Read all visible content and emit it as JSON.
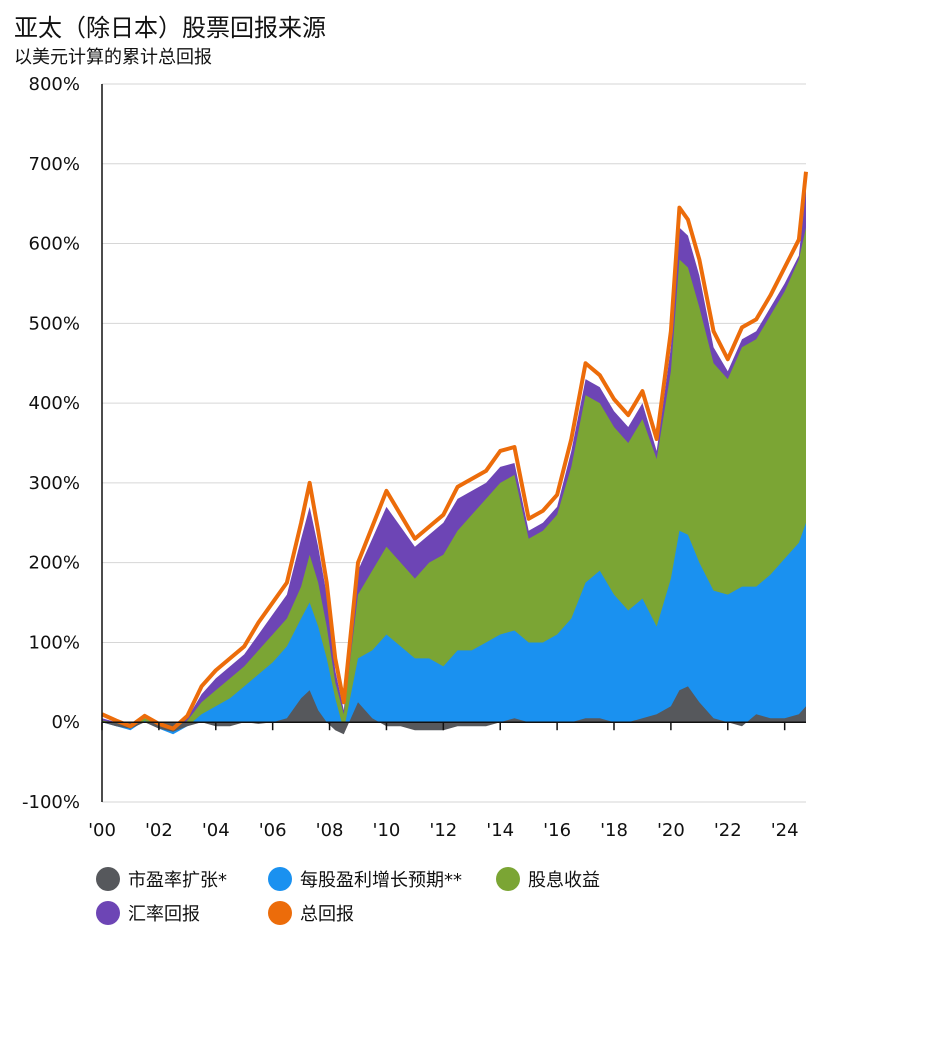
{
  "title": "亚太（除日本）股票回报来源",
  "subtitle": "以美元计算的累计总回报",
  "chart_data": {
    "type": "area",
    "ylim": [
      -100,
      800
    ],
    "y_ticks": [
      "800%",
      "700%",
      "600%",
      "500%",
      "400%",
      "300%",
      "200%",
      "100%",
      "0%",
      "-100%"
    ],
    "y_tick_values": [
      800,
      700,
      600,
      500,
      400,
      300,
      200,
      100,
      0,
      -100
    ],
    "x_ticks": [
      "'00",
      "'02",
      "'04",
      "'06",
      "'08",
      "'10",
      "'12",
      "'14",
      "'16",
      "'18",
      "'20",
      "'22",
      "'24"
    ],
    "x_tick_values": [
      2000,
      2002,
      2004,
      2006,
      2008,
      2010,
      2012,
      2014,
      2016,
      2018,
      2020,
      2022,
      2024
    ],
    "xlim": [
      2000,
      2024.75
    ],
    "grid": true,
    "legend_position": "bottom",
    "x": [
      2000,
      2000.5,
      2001,
      2001.5,
      2002,
      2002.5,
      2003,
      2003.5,
      2004,
      2004.5,
      2005,
      2005.5,
      2006,
      2006.5,
      2007,
      2007.3,
      2007.6,
      2007.9,
      2008.2,
      2008.5,
      2009,
      2009.5,
      2010,
      2010.5,
      2011,
      2011.5,
      2012,
      2012.5,
      2013,
      2013.5,
      2014,
      2014.5,
      2015,
      2015.5,
      2016,
      2016.5,
      2017,
      2017.5,
      2018,
      2018.5,
      2019,
      2019.5,
      2020,
      2020.3,
      2020.6,
      2021,
      2021.5,
      2022,
      2022.5,
      2023,
      2023.5,
      2024,
      2024.5,
      2024.75
    ],
    "series": [
      {
        "name": "市盈率扩张*",
        "color": "#56585c",
        "values": [
          0,
          -5,
          -8,
          0,
          -8,
          -12,
          -5,
          0,
          -5,
          -5,
          0,
          -2,
          0,
          5,
          30,
          40,
          15,
          0,
          -10,
          -15,
          25,
          5,
          -5,
          -5,
          -10,
          -10,
          -10,
          -5,
          -5,
          -5,
          0,
          5,
          0,
          0,
          0,
          0,
          5,
          5,
          0,
          0,
          5,
          10,
          20,
          40,
          45,
          25,
          5,
          0,
          -5,
          10,
          5,
          5,
          10,
          20
        ]
      },
      {
        "name": "每股盈利增长预期**",
        "color": "#1a91f0",
        "values": [
          0,
          -5,
          -10,
          2,
          -8,
          -15,
          -5,
          10,
          20,
          30,
          45,
          60,
          75,
          95,
          130,
          150,
          120,
          80,
          30,
          -10,
          80,
          90,
          110,
          95,
          80,
          80,
          70,
          90,
          90,
          100,
          110,
          115,
          100,
          100,
          110,
          130,
          175,
          190,
          160,
          140,
          155,
          120,
          180,
          240,
          235,
          200,
          165,
          160,
          170,
          170,
          185,
          205,
          225,
          250
        ]
      },
      {
        "name": "股息收益",
        "color": "#7ba534",
        "values": [
          2,
          0,
          -5,
          5,
          -3,
          -10,
          2,
          25,
          40,
          55,
          70,
          90,
          110,
          130,
          170,
          210,
          175,
          120,
          50,
          10,
          160,
          190,
          220,
          200,
          180,
          200,
          210,
          240,
          260,
          280,
          300,
          310,
          230,
          240,
          260,
          320,
          410,
          400,
          370,
          350,
          380,
          330,
          440,
          580,
          570,
          520,
          450,
          430,
          470,
          480,
          510,
          540,
          580,
          620
        ]
      },
      {
        "name": "汇率回报",
        "color": "#6d45b5",
        "values": [
          5,
          0,
          -8,
          5,
          -4,
          -10,
          5,
          35,
          55,
          70,
          85,
          110,
          135,
          160,
          230,
          270,
          220,
          160,
          65,
          15,
          190,
          230,
          270,
          245,
          220,
          235,
          250,
          280,
          290,
          300,
          320,
          325,
          240,
          250,
          270,
          340,
          430,
          420,
          390,
          370,
          400,
          340,
          470,
          620,
          610,
          560,
          470,
          440,
          480,
          490,
          520,
          550,
          585,
          670
        ]
      },
      {
        "name": "总回报",
        "color": "#ec6c0a",
        "values": [
          10,
          2,
          -5,
          8,
          -2,
          -8,
          8,
          45,
          65,
          80,
          95,
          125,
          150,
          175,
          250,
          300,
          240,
          175,
          80,
          25,
          200,
          245,
          290,
          260,
          230,
          245,
          260,
          295,
          305,
          315,
          340,
          345,
          255,
          265,
          285,
          355,
          450,
          435,
          405,
          385,
          415,
          355,
          490,
          645,
          630,
          580,
          490,
          455,
          495,
          505,
          535,
          570,
          605,
          690
        ]
      }
    ]
  }
}
